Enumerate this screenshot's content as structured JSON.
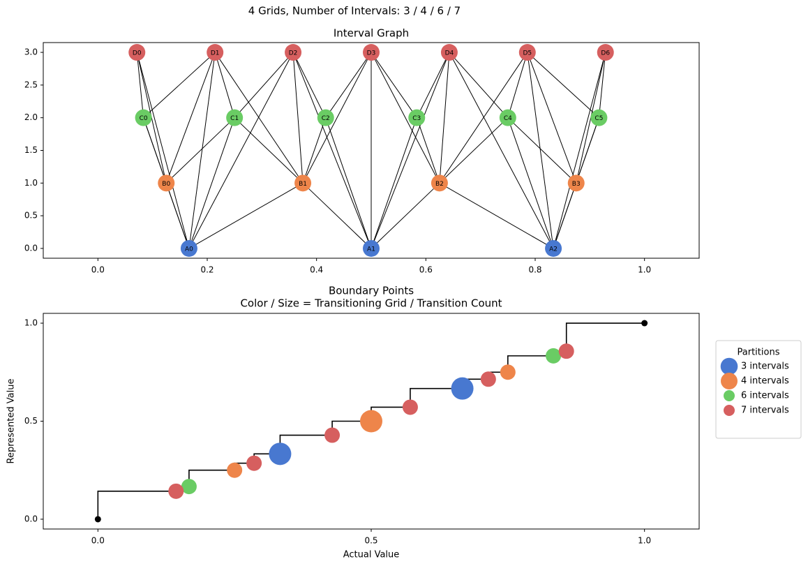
{
  "suptitle": "4 Grids, Number of Intervals: 3 / 4 / 6 / 7",
  "chart_data": [
    {
      "type": "network",
      "title": "Interval Graph",
      "xlim": [
        -0.1,
        1.1
      ],
      "ylim": [
        -0.15,
        3.15
      ],
      "xticks": [
        {
          "value": 0,
          "label": "0.0"
        },
        {
          "value": 0.2,
          "label": "0.2"
        },
        {
          "value": 0.4,
          "label": "0.4"
        },
        {
          "value": 0.6,
          "label": "0.6"
        },
        {
          "value": 0.8,
          "label": "0.8"
        },
        {
          "value": 1,
          "label": "1.0"
        }
      ],
      "yticks": [
        {
          "value": 0,
          "label": "0.0"
        },
        {
          "value": 0.5,
          "label": "0.5"
        },
        {
          "value": 1,
          "label": "1.0"
        },
        {
          "value": 1.5,
          "label": "1.5"
        },
        {
          "value": 2,
          "label": "2.0"
        },
        {
          "value": 2.5,
          "label": "2.5"
        },
        {
          "value": 3,
          "label": "3.0"
        }
      ],
      "nodes": [
        {
          "label": "A0",
          "x": 0.1667,
          "y": 0,
          "color": "#4878d0"
        },
        {
          "label": "A1",
          "x": 0.5,
          "y": 0,
          "color": "#4878d0"
        },
        {
          "label": "A2",
          "x": 0.8333,
          "y": 0,
          "color": "#4878d0"
        },
        {
          "label": "B0",
          "x": 0.125,
          "y": 1,
          "color": "#ee854a"
        },
        {
          "label": "B1",
          "x": 0.375,
          "y": 1,
          "color": "#ee854a"
        },
        {
          "label": "B2",
          "x": 0.625,
          "y": 1,
          "color": "#ee854a"
        },
        {
          "label": "B3",
          "x": 0.875,
          "y": 1,
          "color": "#ee854a"
        },
        {
          "label": "C0",
          "x": 0.0833,
          "y": 2,
          "color": "#6acc64"
        },
        {
          "label": "C1",
          "x": 0.25,
          "y": 2,
          "color": "#6acc64"
        },
        {
          "label": "C2",
          "x": 0.4167,
          "y": 2,
          "color": "#6acc64"
        },
        {
          "label": "C3",
          "x": 0.5833,
          "y": 2,
          "color": "#6acc64"
        },
        {
          "label": "C4",
          "x": 0.75,
          "y": 2,
          "color": "#6acc64"
        },
        {
          "label": "C5",
          "x": 0.9167,
          "y": 2,
          "color": "#6acc64"
        },
        {
          "label": "D0",
          "x": 0.0714,
          "y": 3,
          "color": "#d65f5f"
        },
        {
          "label": "D1",
          "x": 0.2143,
          "y": 3,
          "color": "#d65f5f"
        },
        {
          "label": "D2",
          "x": 0.3571,
          "y": 3,
          "color": "#d65f5f"
        },
        {
          "label": "D3",
          "x": 0.5,
          "y": 3,
          "color": "#d65f5f"
        },
        {
          "label": "D4",
          "x": 0.6429,
          "y": 3,
          "color": "#d65f5f"
        },
        {
          "label": "D5",
          "x": 0.7857,
          "y": 3,
          "color": "#d65f5f"
        },
        {
          "label": "D6",
          "x": 0.9286,
          "y": 3,
          "color": "#d65f5f"
        }
      ],
      "edges": [
        [
          "A0",
          "B0"
        ],
        [
          "A0",
          "B1"
        ],
        [
          "A1",
          "B1"
        ],
        [
          "A1",
          "B2"
        ],
        [
          "A2",
          "B2"
        ],
        [
          "A2",
          "B3"
        ],
        [
          "A0",
          "C0"
        ],
        [
          "A0",
          "C1"
        ],
        [
          "A1",
          "C2"
        ],
        [
          "A1",
          "C3"
        ],
        [
          "A2",
          "C4"
        ],
        [
          "A2",
          "C5"
        ],
        [
          "A0",
          "D0"
        ],
        [
          "A0",
          "D1"
        ],
        [
          "A0",
          "D2"
        ],
        [
          "A1",
          "D2"
        ],
        [
          "A1",
          "D3"
        ],
        [
          "A1",
          "D4"
        ],
        [
          "A2",
          "D4"
        ],
        [
          "A2",
          "D5"
        ],
        [
          "A2",
          "D6"
        ],
        [
          "B0",
          "C0"
        ],
        [
          "B0",
          "C1"
        ],
        [
          "B1",
          "C1"
        ],
        [
          "B1",
          "C2"
        ],
        [
          "B2",
          "C3"
        ],
        [
          "B2",
          "C4"
        ],
        [
          "B3",
          "C4"
        ],
        [
          "B3",
          "C5"
        ],
        [
          "B0",
          "D0"
        ],
        [
          "B0",
          "D1"
        ],
        [
          "B1",
          "D1"
        ],
        [
          "B1",
          "D2"
        ],
        [
          "B1",
          "D3"
        ],
        [
          "B2",
          "D3"
        ],
        [
          "B2",
          "D4"
        ],
        [
          "B2",
          "D5"
        ],
        [
          "B3",
          "D5"
        ],
        [
          "B3",
          "D6"
        ],
        [
          "C0",
          "D0"
        ],
        [
          "C0",
          "D1"
        ],
        [
          "C1",
          "D1"
        ],
        [
          "C1",
          "D2"
        ],
        [
          "C2",
          "D2"
        ],
        [
          "C2",
          "D3"
        ],
        [
          "C3",
          "D3"
        ],
        [
          "C3",
          "D4"
        ],
        [
          "C4",
          "D4"
        ],
        [
          "C4",
          "D5"
        ],
        [
          "C5",
          "D5"
        ],
        [
          "C5",
          "D6"
        ]
      ]
    },
    {
      "type": "scatter",
      "title": "Boundary Points",
      "subtitle": "Color / Size = Transitioning Grid / Transition Count",
      "xlabel": "Actual Value",
      "ylabel": "Represented Value",
      "xlim": [
        -0.1,
        1.1
      ],
      "ylim": [
        -0.05,
        1.05
      ],
      "xticks": [
        {
          "value": 0,
          "label": "0.0"
        },
        {
          "value": 0.5,
          "label": "0.5"
        },
        {
          "value": 1,
          "label": "1.0"
        }
      ],
      "yticks": [
        {
          "value": 0,
          "label": "0.0"
        },
        {
          "value": 0.5,
          "label": "0.5"
        },
        {
          "value": 1,
          "label": "1.0"
        }
      ],
      "step": {
        "drawstyle": "steps-pre",
        "color": "#000000",
        "x": [
          0,
          0.1429,
          0.1667,
          0.25,
          0.2857,
          0.3333,
          0.4286,
          0.5,
          0.5714,
          0.6667,
          0.7143,
          0.75,
          0.8333,
          0.8571,
          1
        ],
        "y": [
          0,
          0.1429,
          0.1667,
          0.25,
          0.2857,
          0.3333,
          0.4286,
          0.5,
          0.5714,
          0.6667,
          0.7143,
          0.75,
          0.8333,
          0.8571,
          1
        ]
      },
      "legend_title": "Partitions",
      "legend": "outside right",
      "series": [
        {
          "name": "3 intervals",
          "color": "#4878d0",
          "x": [
            0.3333,
            0.6667
          ],
          "values": [
            0.3333,
            0.6667
          ],
          "sizes": [
            2,
            2
          ]
        },
        {
          "name": "4 intervals",
          "color": "#ee854a",
          "x": [
            0.25,
            0.5,
            0.75
          ],
          "values": [
            0.25,
            0.5,
            0.75
          ],
          "sizes": [
            1,
            2,
            1
          ]
        },
        {
          "name": "6 intervals",
          "color": "#6acc64",
          "x": [
            0.1667,
            0.8333
          ],
          "values": [
            0.1667,
            0.8333
          ],
          "sizes": [
            1,
            1
          ]
        },
        {
          "name": "7 intervals",
          "color": "#d65f5f",
          "x": [
            0.1429,
            0.2857,
            0.4286,
            0.5714,
            0.7143,
            0.8571
          ],
          "values": [
            0.1429,
            0.2857,
            0.4286,
            0.5714,
            0.7143,
            0.8571
          ],
          "sizes": [
            1,
            1,
            1,
            1,
            1,
            1
          ]
        }
      ]
    }
  ]
}
